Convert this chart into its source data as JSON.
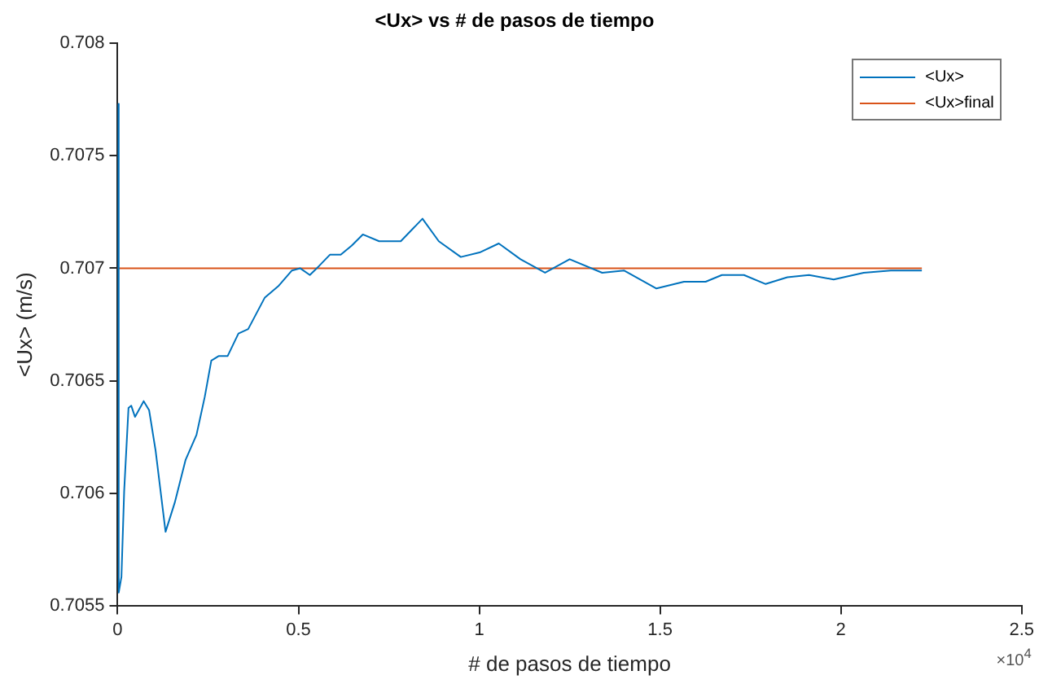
{
  "chart_data": {
    "type": "line",
    "title": "<Ux> vs # de pasos de tiempo",
    "xlabel": "# de pasos de tiempo",
    "ylabel": "<Ux> (m/s)",
    "xlim": [
      0,
      2.5
    ],
    "xticks": [
      0,
      0.5,
      1,
      1.5,
      2,
      2.5
    ],
    "ylim": [
      0.7055,
      0.708
    ],
    "yticks": [
      0.7055,
      0.706,
      0.7065,
      0.707,
      0.7075,
      0.708
    ],
    "grid": false,
    "legend": "top right",
    "marker": "none",
    "line_style": "solid",
    "annotations": [
      "×10$^{4}$"
    ],
    "series": [
      {
        "name": "<Ux>",
        "color": "#0072bd",
        "x": [
          0,
          0.003,
          0.0105,
          0.018,
          0.03,
          0.0375,
          0.048,
          0.072,
          0.087,
          0.105,
          0.1325,
          0.158,
          0.188,
          0.218,
          0.241,
          0.259,
          0.279,
          0.304,
          0.334,
          0.361,
          0.407,
          0.444,
          0.482,
          0.5045,
          0.5315,
          0.557,
          0.587,
          0.617,
          0.647,
          0.678,
          0.723,
          0.783,
          0.843,
          0.888,
          0.949,
          1.001,
          1.054,
          1.114,
          1.182,
          1.25,
          1.34,
          1.4,
          1.49,
          1.566,
          1.626,
          1.671,
          1.732,
          1.792,
          1.852,
          1.912,
          1.98,
          2.063,
          2.138,
          2.183,
          2.224
        ],
        "values": [
          0.70773,
          0.70556,
          0.70563,
          0.70601,
          0.70638,
          0.70639,
          0.70634,
          0.70641,
          0.70637,
          0.70619,
          0.70583,
          0.70596,
          0.70615,
          0.70626,
          0.70643,
          0.70659,
          0.70661,
          0.70661,
          0.70671,
          0.70673,
          0.70687,
          0.70692,
          0.70699,
          0.707,
          0.70697,
          0.70701,
          0.70706,
          0.70706,
          0.7071,
          0.70715,
          0.70712,
          0.70712,
          0.70722,
          0.70712,
          0.70705,
          0.70707,
          0.70711,
          0.70704,
          0.70698,
          0.70704,
          0.70698,
          0.70699,
          0.70691,
          0.70694,
          0.70694,
          0.70697,
          0.70697,
          0.70693,
          0.70696,
          0.70697,
          0.70695,
          0.70698,
          0.70699,
          0.70699,
          0.70699
        ]
      },
      {
        "name": "<Ux>final",
        "color": "#d95319",
        "x": [
          0,
          2.224
        ],
        "values": [
          0.707,
          0.707
        ]
      }
    ]
  }
}
